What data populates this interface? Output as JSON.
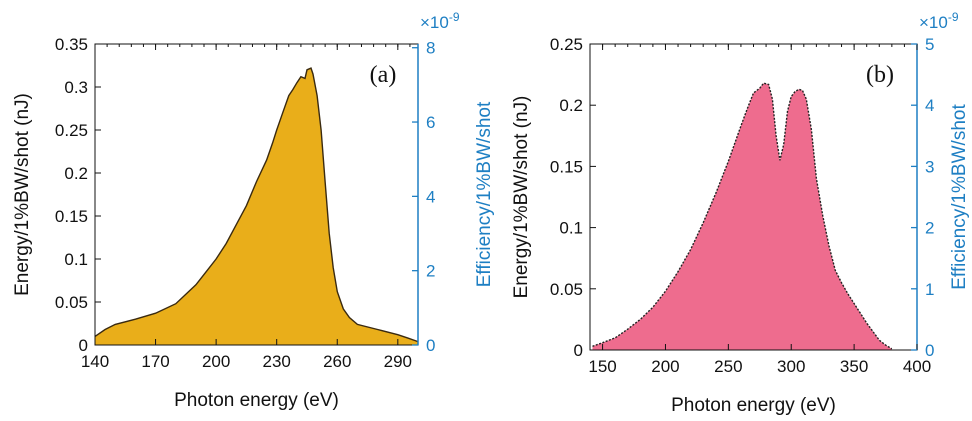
{
  "chart_data": [
    {
      "type": "area",
      "panel_label": "(a)",
      "xlabel": "Photon energy (eV)",
      "ylabel": "Energy/1%BW/shot (nJ)",
      "ylabel_right": "Efficiency/1%BW/shot",
      "right_multiplier": "×10",
      "right_exponent": "-9",
      "xlim": [
        140,
        300
      ],
      "ylim": [
        0,
        0.35
      ],
      "ylim_right": [
        0,
        8.1
      ],
      "x_ticks": [
        "140",
        "170",
        "200",
        "230",
        "260",
        "290"
      ],
      "y_ticks": [
        "0",
        "0.05",
        "0.1",
        "0.15",
        "0.2",
        "0.25",
        "0.3",
        "0.35"
      ],
      "y_ticks_right": [
        "0",
        "2",
        "4",
        "6",
        "8"
      ],
      "fill_color": "#E9AE1A",
      "edge_color": "#3A2A10",
      "right_axis_color": "#1E7FC3",
      "x": [
        140,
        145,
        150,
        160,
        170,
        180,
        190,
        195,
        200,
        205,
        210,
        215,
        220,
        225,
        228,
        230,
        233,
        236,
        238,
        240,
        242,
        244,
        245,
        247,
        248,
        250,
        252,
        254,
        256,
        258,
        260,
        263,
        266,
        270,
        280,
        290,
        295,
        300
      ],
      "y": [
        0.01,
        0.018,
        0.024,
        0.03,
        0.037,
        0.048,
        0.07,
        0.085,
        0.1,
        0.118,
        0.14,
        0.162,
        0.19,
        0.215,
        0.235,
        0.25,
        0.27,
        0.29,
        0.297,
        0.305,
        0.312,
        0.31,
        0.32,
        0.322,
        0.315,
        0.29,
        0.25,
        0.19,
        0.13,
        0.09,
        0.062,
        0.042,
        0.032,
        0.024,
        0.018,
        0.012,
        0.008,
        0.004
      ]
    },
    {
      "type": "area",
      "panel_label": "(b)",
      "xlabel": "Photon energy (eV)",
      "ylabel": "Energy/1%BW/shot (nJ)",
      "ylabel_right": "Efficiency/1%BW/shot",
      "right_multiplier": "×10",
      "right_exponent": "-9",
      "xlim": [
        140,
        400
      ],
      "ylim": [
        0,
        0.25
      ],
      "ylim_right": [
        0,
        5
      ],
      "x_ticks": [
        "150",
        "200",
        "250",
        "300",
        "350",
        "400"
      ],
      "y_ticks": [
        "0",
        "0.05",
        "0.1",
        "0.15",
        "0.2",
        "0.25"
      ],
      "y_ticks_right": [
        "0",
        "1",
        "2",
        "3",
        "4",
        "5"
      ],
      "fill_color": "#EE6C8E",
      "edge_color": "#222222",
      "right_axis_color": "#1E7FC3",
      "x": [
        142,
        150,
        160,
        170,
        180,
        190,
        200,
        210,
        220,
        230,
        240,
        250,
        260,
        265,
        270,
        275,
        278,
        282,
        285,
        288,
        291,
        294,
        297,
        300,
        303,
        306,
        309,
        312,
        316,
        320,
        325,
        330,
        335,
        340,
        345,
        350,
        355,
        360,
        365,
        370,
        375,
        380
      ],
      "y": [
        0.003,
        0.006,
        0.01,
        0.017,
        0.025,
        0.035,
        0.048,
        0.064,
        0.082,
        0.104,
        0.128,
        0.154,
        0.183,
        0.197,
        0.21,
        0.214,
        0.218,
        0.217,
        0.205,
        0.175,
        0.155,
        0.168,
        0.195,
        0.207,
        0.211,
        0.213,
        0.212,
        0.205,
        0.18,
        0.14,
        0.11,
        0.085,
        0.065,
        0.055,
        0.046,
        0.038,
        0.03,
        0.022,
        0.015,
        0.008,
        0.004,
        0.001
      ]
    }
  ]
}
